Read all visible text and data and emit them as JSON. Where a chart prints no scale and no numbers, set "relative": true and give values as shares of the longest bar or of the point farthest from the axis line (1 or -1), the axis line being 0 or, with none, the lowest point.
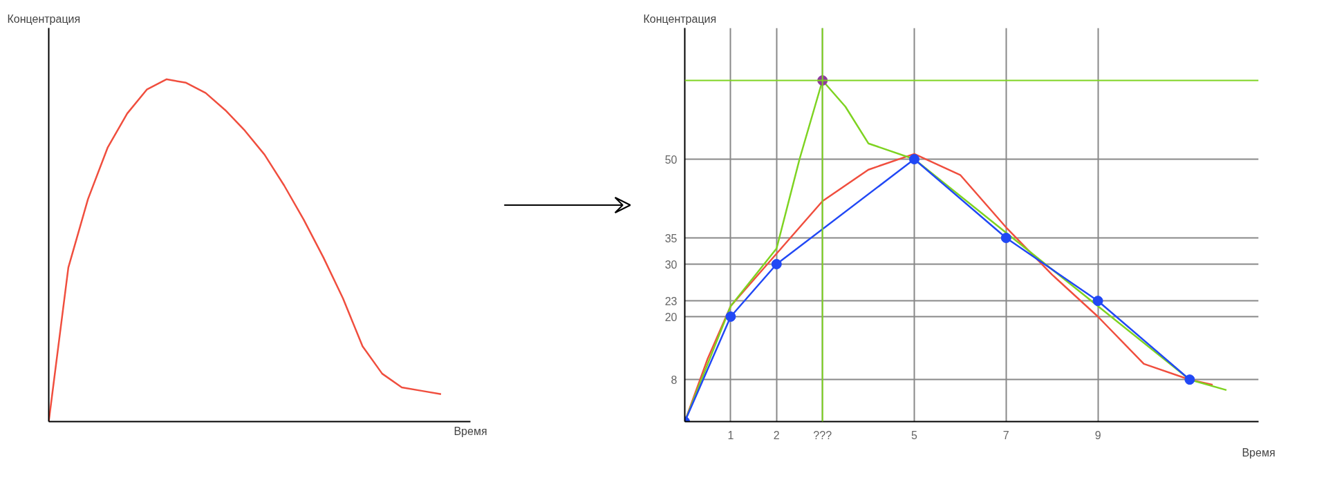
{
  "chart_data": [
    {
      "type": "line",
      "relative": true,
      "title": "Концентрация",
      "xlabel": "Время",
      "color": "#f04e3e",
      "marker": "none",
      "grid": false,
      "categories": [
        null,
        null,
        null,
        null,
        null,
        null,
        null,
        null,
        null,
        null,
        null,
        null,
        null,
        null,
        null,
        null,
        null,
        null,
        null,
        null,
        null
      ],
      "values": [
        0,
        0.45,
        0.65,
        0.8,
        0.9,
        0.97,
        1.0,
        0.99,
        0.96,
        0.91,
        0.85,
        0.78,
        0.69,
        0.59,
        0.48,
        0.36,
        0.22,
        0.14,
        0.1,
        0.09,
        0.08
      ]
    },
    {
      "type": "line",
      "title": "Концентрация",
      "xlabel": "Время",
      "xlim": [
        0,
        12.5
      ],
      "ylim": [
        0,
        75
      ],
      "xticks": [
        1,
        2,
        {
          "value": 3,
          "label": "???"
        },
        5,
        7,
        9
      ],
      "yticks": [
        8,
        20,
        23,
        30,
        35,
        50
      ],
      "grid": true,
      "ref_lines": [
        {
          "axis": "y",
          "value": 65,
          "color": "#7ed321"
        },
        {
          "axis": "x",
          "value": 3,
          "color": "#7ed321"
        }
      ],
      "series": [
        {
          "type": "line",
          "color": "#f04e3e",
          "marker": "none",
          "x": [
            0,
            0.5,
            1,
            2,
            3,
            4,
            5,
            6,
            7,
            8,
            9,
            10,
            11,
            11.5
          ],
          "values": [
            0,
            12,
            22,
            32,
            42,
            48,
            51,
            47,
            37,
            28,
            20,
            11,
            8,
            7
          ]
        },
        {
          "type": "line",
          "color": "#7ed321",
          "marker": "none",
          "x": [
            0,
            1,
            2,
            2.5,
            3,
            3.5,
            4,
            5,
            7,
            9,
            11,
            11.8
          ],
          "values": [
            0,
            22,
            33,
            50,
            65,
            60,
            53,
            50,
            36,
            22,
            8,
            6
          ]
        },
        {
          "type": "line",
          "color": "#2148f5",
          "marker": "circle",
          "x": [
            0,
            1,
            2,
            5,
            7,
            9,
            11
          ],
          "values": [
            0,
            20,
            30,
            50,
            35,
            23,
            8
          ]
        },
        {
          "type": "scatter",
          "color": "#8e3a9e",
          "marker": "circle",
          "x": [
            3
          ],
          "values": [
            65
          ]
        }
      ]
    }
  ]
}
